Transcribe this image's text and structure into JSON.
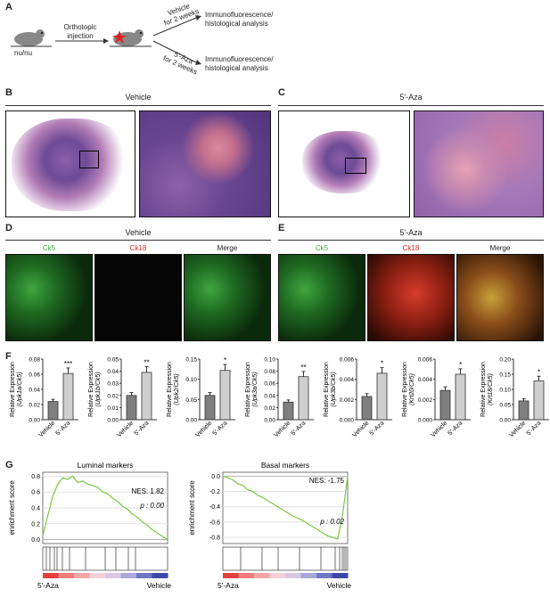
{
  "panels": {
    "a": "A",
    "b": "B",
    "c": "C",
    "d": "D",
    "e": "E",
    "f": "F",
    "g": "G"
  },
  "schematic": {
    "mouse_label": "nu/nu",
    "injection": "Orthotopic\ninjection",
    "vehicle_arm": "Vehicle\nfor 2 weeks",
    "aza_arm": "5'-Aza\nfor 2 weeks",
    "outcome_top": "Immunofluorescence/\nhistological analysis",
    "outcome_bottom": "Immunofluorescence/\nhistological analysis"
  },
  "histology": {
    "vehicle_title": "Vehicle",
    "aza_title": "5'-Aza"
  },
  "fluorescence": {
    "vehicle_title": "Vehicle",
    "aza_title": "5'-Aza",
    "labels": [
      "Ck5",
      "Ck18",
      "Merge"
    ],
    "colors": {
      "ck5": "#3fae3f",
      "ck18": "#d7261e",
      "merge": "#222222"
    }
  },
  "chart_data": [
    {
      "type": "bar",
      "categories": [
        "Vehicle",
        "5'-Aza"
      ],
      "values": [
        0.024,
        0.061
      ],
      "ylim": [
        0,
        0.08
      ],
      "yticks": [
        "0.00",
        "0.02",
        "0.04",
        "0.06",
        "0.08"
      ],
      "ylabel": "Relative Expression",
      "ylabel2": "(Upk1a/Ck5)",
      "sig": "***"
    },
    {
      "type": "bar",
      "categories": [
        "Vehicle",
        "5'-Aza"
      ],
      "values": [
        0.02,
        0.039
      ],
      "ylim": [
        0,
        0.05
      ],
      "yticks": [
        "0.00",
        "0.01",
        "0.02",
        "0.03",
        "0.04",
        "0.05"
      ],
      "ylabel": "Relative Expression",
      "ylabel2": "(Upk1b/Ck5)",
      "sig": "**"
    },
    {
      "type": "bar",
      "categories": [
        "Vehicle",
        "5'-Aza"
      ],
      "values": [
        0.06,
        0.122
      ],
      "ylim": [
        0,
        0.15
      ],
      "yticks": [
        "0.00",
        "0.05",
        "0.10",
        "0.15"
      ],
      "ylabel": "Relative Expression",
      "ylabel2": "(Upk2/Ck5)",
      "sig": "*"
    },
    {
      "type": "bar",
      "categories": [
        "Vehicle",
        "5'-Aza"
      ],
      "values": [
        0.029,
        0.071
      ],
      "ylim": [
        0,
        0.1
      ],
      "yticks": [
        "0.00",
        "0.02",
        "0.04",
        "0.06",
        "0.08",
        "0.10"
      ],
      "ylabel": "Relative Expression",
      "ylabel2": "(Upk3a/Ck5)",
      "sig": "**"
    },
    {
      "type": "bar",
      "categories": [
        "Vehicle",
        "5'-Aza"
      ],
      "values": [
        0.0023,
        0.0046
      ],
      "ylim": [
        0,
        0.006
      ],
      "yticks": [
        "0.000",
        "0.002",
        "0.004",
        "0.006"
      ],
      "ylabel": "Relative Expression",
      "ylabel2": "(Upk3b/Ck5)",
      "sig": "*"
    },
    {
      "type": "bar",
      "categories": [
        "Vehicle",
        "5'-Aza"
      ],
      "values": [
        0.0029,
        0.0045
      ],
      "ylim": [
        0,
        0.006
      ],
      "yticks": [
        "0.000",
        "0.002",
        "0.004",
        "0.006"
      ],
      "ylabel": "Relative Expression",
      "ylabel2": "(Krt20/Ck5)",
      "sig": "*"
    },
    {
      "type": "bar",
      "categories": [
        "Vehicle",
        "5'-Aza"
      ],
      "values": [
        0.062,
        0.128
      ],
      "ylim": [
        0,
        0.2
      ],
      "yticks": [
        "0.00",
        "0.05",
        "0.10",
        "0.15",
        "0.20"
      ],
      "ylabel": "Relative Expression",
      "ylabel2": "(Krt18/Ck5)",
      "sig": "*"
    },
    {
      "type": "line",
      "title": "Luminal markers",
      "ylabel": "enrichment score",
      "yticks": [
        "0.0",
        "0.2",
        "0.4",
        "0.6",
        "0.8"
      ],
      "ylim": [
        -0.05,
        0.85
      ],
      "nes": "NES: 1.82",
      "p": "p : 0.00",
      "xleft": "5'-Aza",
      "xright": "Vehicle"
    },
    {
      "type": "line",
      "title": "Basal markers",
      "ylabel": "enrichment score",
      "yticks": [
        "0.0",
        "-0.2",
        "-0.4",
        "-0.6",
        "-0.8"
      ],
      "ylim": [
        -0.88,
        0.05
      ],
      "nes": "NES: -1.75",
      "p": "p : 0.02",
      "xleft": "5'-Aza",
      "xright": "Vehicle"
    }
  ]
}
